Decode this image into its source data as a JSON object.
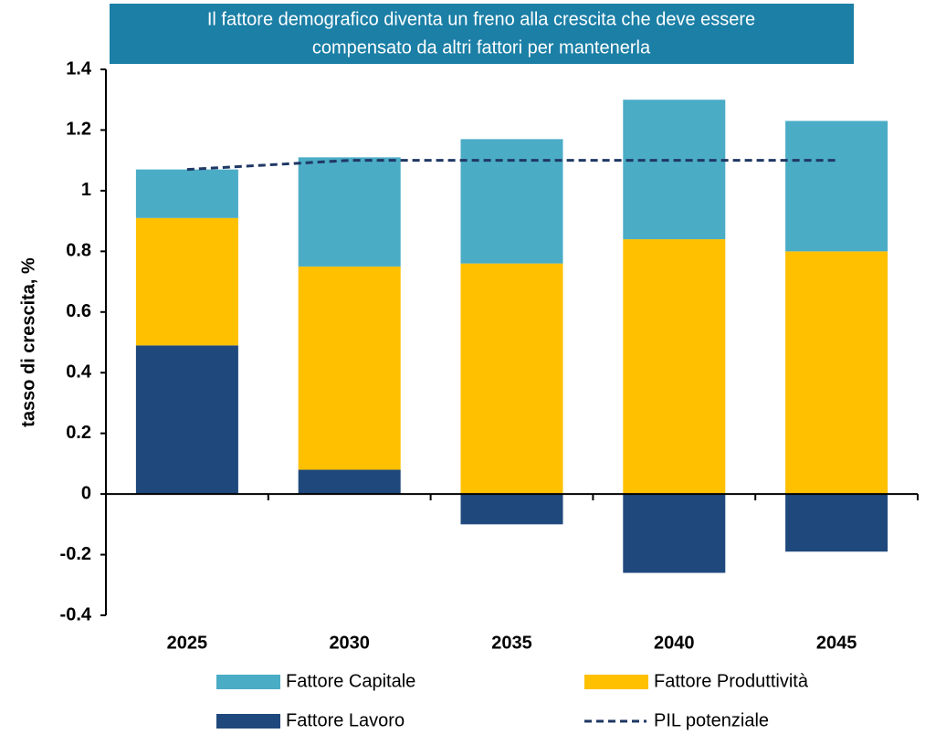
{
  "chart_data": {
    "type": "bar",
    "stacked": true,
    "title": [
      "Il fattore demografico diventa un freno alla crescita che deve essere",
      "compensato da altri fattori per mantenerla"
    ],
    "ylabel": "tasso di crescita, %",
    "categories": [
      "2025",
      "2030",
      "2035",
      "2040",
      "2045"
    ],
    "series": [
      {
        "name": "Fattore Capitale",
        "color": "#4bacc6",
        "values": [
          0.16,
          0.36,
          0.41,
          0.46,
          0.43
        ]
      },
      {
        "name": "Fattore Produttività",
        "color": "#ffc000",
        "values": [
          0.42,
          0.67,
          0.76,
          0.84,
          0.8
        ]
      },
      {
        "name": "Fattore Lavoro",
        "color": "#1f497d",
        "values": [
          0.49,
          0.08,
          -0.1,
          -0.26,
          -0.19
        ]
      }
    ],
    "lines": [
      {
        "name": "PIL potenziale",
        "color": "#1f3864",
        "dashed": true,
        "values": [
          1.07,
          1.1,
          1.1,
          1.1,
          1.1
        ]
      }
    ],
    "ylim": [
      -0.4,
      1.4
    ],
    "yticks": [
      -0.4,
      -0.2,
      0,
      0.2,
      0.4,
      0.6,
      0.8,
      1,
      1.2,
      1.4
    ]
  }
}
